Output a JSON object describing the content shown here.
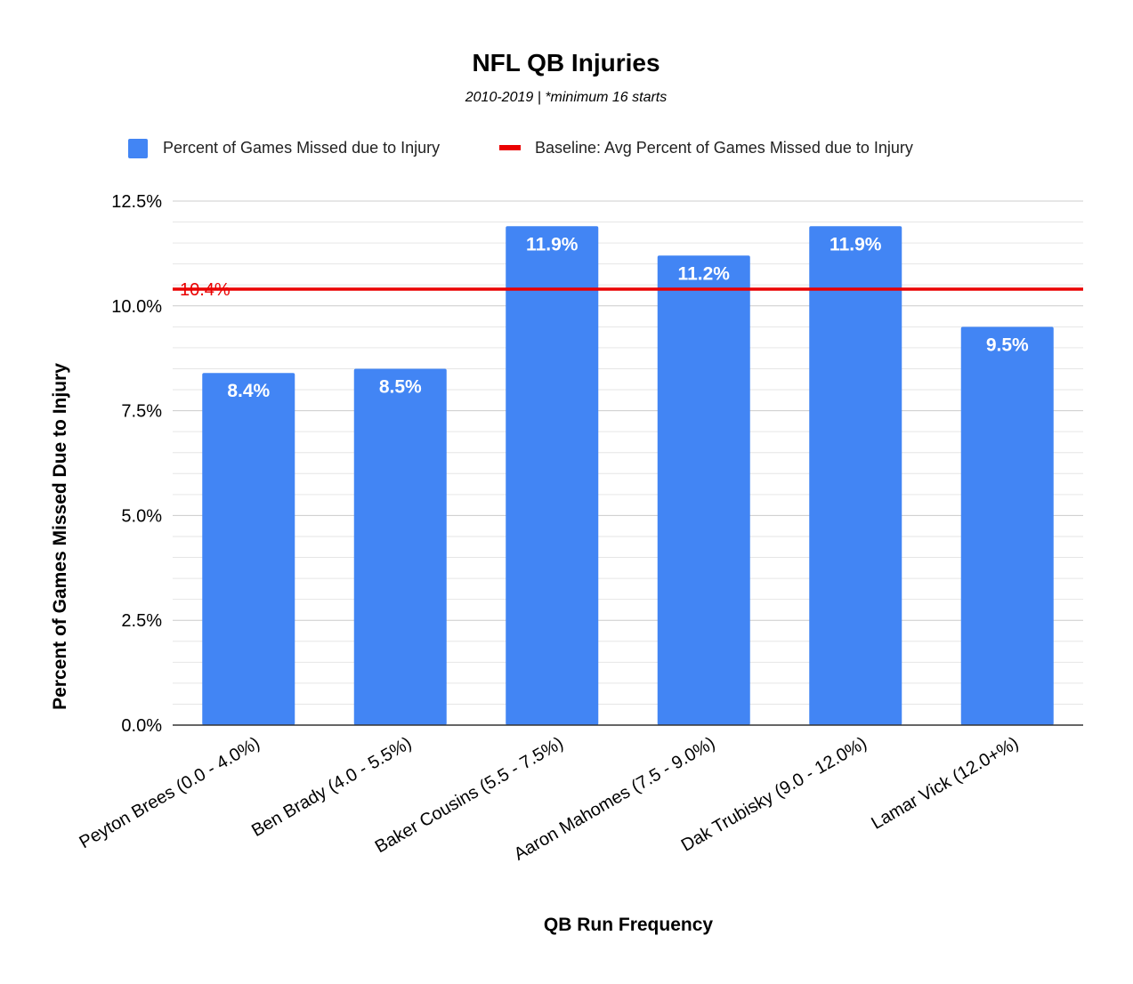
{
  "chart_data": {
    "type": "bar",
    "title": "NFL QB Injuries",
    "subtitle": "2010-2019 | *minimum 16 starts",
    "xlabel": "QB Run Frequency",
    "ylabel": "Percent of Games Missed Due to Injury",
    "categories": [
      "Peyton Brees (0.0 - 4.0%)",
      "Ben Brady (4.0 - 5.5%)",
      "Baker Cousins (5.5 - 7.5%)",
      "Aaron Mahomes (7.5 - 9.0%)",
      "Dak Trubisky (9.0 - 12.0%)",
      "Lamar Vick (12.0+%)"
    ],
    "series": [
      {
        "name": "Percent of Games Missed due to Injury",
        "values": [
          8.4,
          8.5,
          11.9,
          11.2,
          11.9,
          9.5
        ],
        "labels": [
          "8.4%",
          "8.5%",
          "11.9%",
          "11.2%",
          "11.9%",
          "9.5%"
        ],
        "color": "#4285f4"
      }
    ],
    "baseline": {
      "name": "Baseline: Avg Percent of Games Missed due to Injury",
      "value": 10.4,
      "label": "10.4%",
      "color": "#ea0000"
    },
    "ylim": [
      0,
      12.5
    ],
    "yticks": [
      0,
      2.5,
      5,
      7.5,
      10,
      12.5
    ],
    "ytick_labels": [
      "0.0%",
      "2.5%",
      "5.0%",
      "7.5%",
      "10.0%",
      "12.5%"
    ],
    "grid": true,
    "legend_position": "top"
  }
}
